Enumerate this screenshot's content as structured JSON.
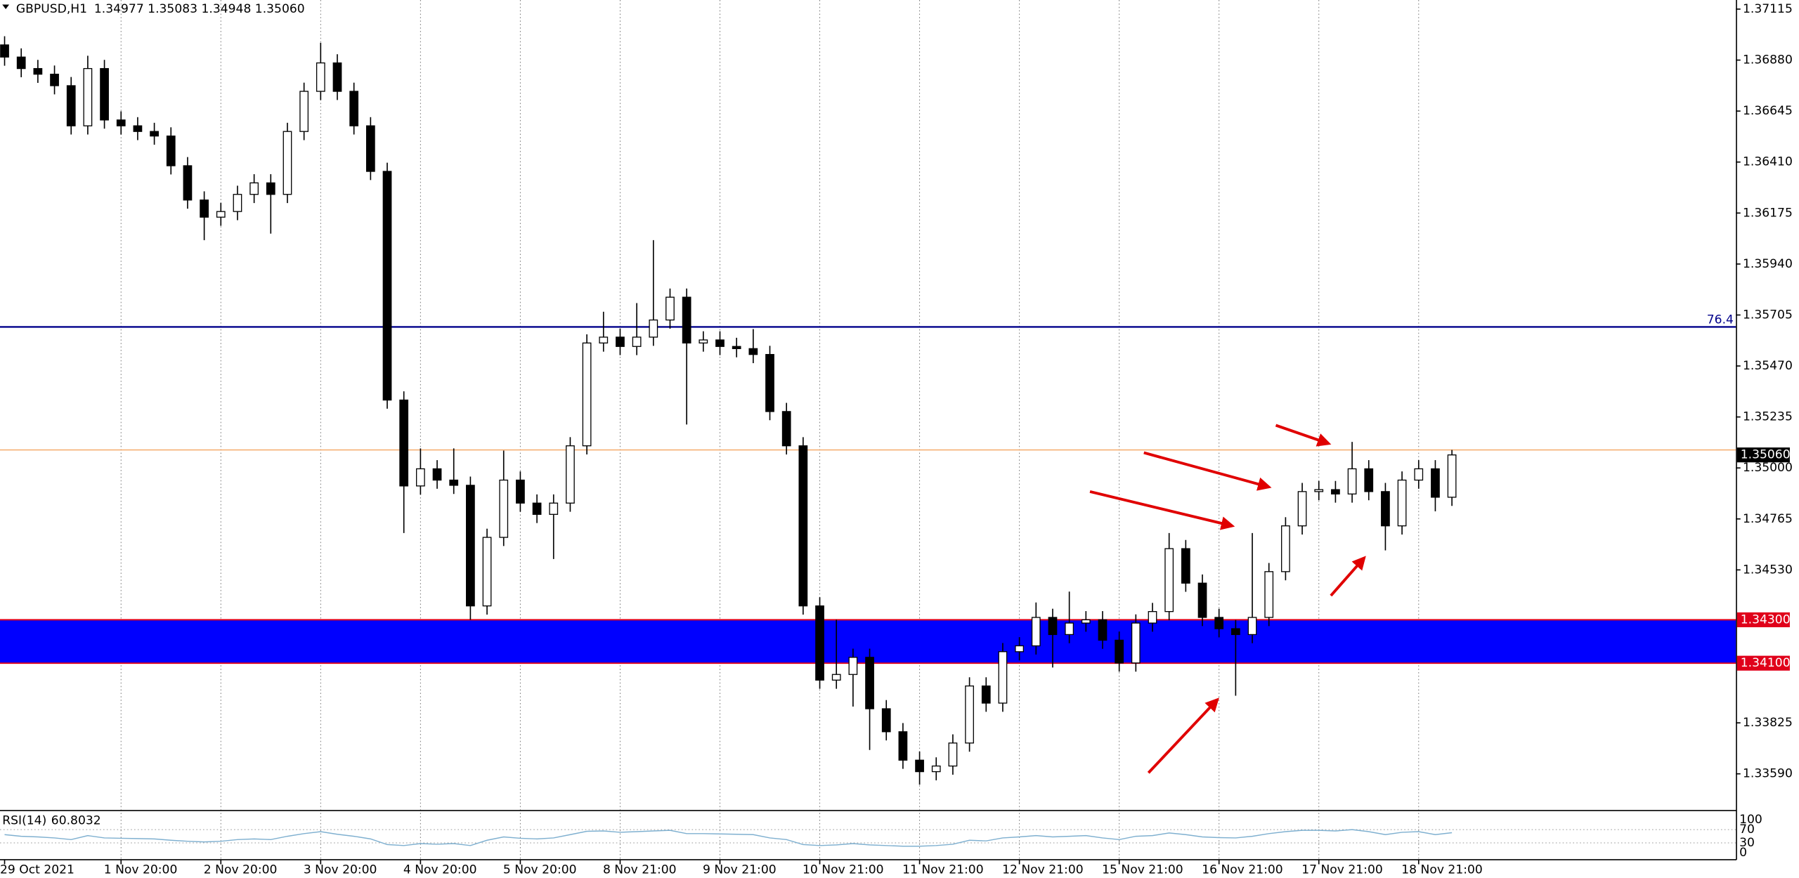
{
  "chart_data": {
    "type": "candlestick",
    "title": "GBPUSD,H1",
    "quote": "1.34977 1.35083 1.34948 1.35060",
    "categories": [
      "29 Oct 2021",
      null,
      null,
      null,
      null,
      null,
      null,
      "1 Nov 20:00",
      null,
      null,
      null,
      null,
      null,
      "2 Nov 20:00",
      null,
      null,
      null,
      null,
      null,
      "3 Nov 20:00",
      null,
      null,
      null,
      null,
      null,
      "4 Nov 20:00",
      null,
      null,
      null,
      null,
      null,
      "5 Nov 20:00",
      null,
      null,
      null,
      null,
      null,
      "8 Nov 21:00",
      null,
      null,
      null,
      null,
      null,
      "9 Nov 21:00",
      null,
      null,
      null,
      null,
      null,
      "10 Nov 21:00",
      null,
      null,
      null,
      null,
      null,
      "11 Nov 21:00",
      null,
      null,
      null,
      null,
      null,
      "12 Nov 21:00",
      null,
      null,
      null,
      null,
      null,
      "15 Nov 21:00",
      null,
      null,
      null,
      null,
      null,
      "16 Nov 21:00",
      null,
      null,
      null,
      null,
      null,
      "17 Nov 21:00",
      null,
      null,
      null,
      null,
      null,
      "18 Nov 21:00",
      null,
      null
    ],
    "open": [
      1.3695,
      1.36894,
      1.36841,
      1.36815,
      1.36762,
      1.36577,
      1.36841,
      1.36604,
      1.36577,
      1.36551,
      1.3653,
      1.36393,
      1.36235,
      1.36156,
      1.36182,
      1.36261,
      1.36314,
      1.36261,
      1.36551,
      1.36736,
      1.36867,
      1.36736,
      1.36577,
      1.36367,
      1.35313,
      1.34917,
      1.34996,
      1.34944,
      1.3492,
      1.34364,
      1.3468,
      1.34944,
      1.34838,
      1.34786,
      1.34838,
      1.35102,
      1.35576,
      1.35603,
      1.3556,
      1.35603,
      1.35682,
      1.35787,
      1.35576,
      1.3559,
      1.3556,
      1.3555,
      1.35523,
      1.3526,
      1.35102,
      1.34364,
      1.34022,
      1.34048,
      1.34127,
      1.3389,
      1.33784,
      1.33653,
      1.336,
      1.33626,
      1.33732,
      1.33995,
      1.33916,
      1.34153,
      1.3418,
      1.34311,
      1.34232,
      1.34285,
      1.343,
      1.34206,
      1.34101,
      1.34285,
      1.34338,
      1.34628,
      1.34469,
      1.34311,
      1.34259,
      1.34232,
      1.34311,
      1.34522,
      1.34733,
      1.34891,
      1.349,
      1.3488,
      1.34996,
      1.34891,
      1.34733,
      1.34944,
      1.34996,
      1.34865
    ],
    "high": [
      1.3699,
      1.36934,
      1.36881,
      1.36855,
      1.36802,
      1.369,
      1.36881,
      1.36644,
      1.36617,
      1.36591,
      1.3657,
      1.36433,
      1.36275,
      1.36222,
      1.36301,
      1.36354,
      1.36354,
      1.36591,
      1.36776,
      1.3696,
      1.36907,
      1.36776,
      1.36617,
      1.36407,
      1.35353,
      1.3509,
      1.35036,
      1.3509,
      1.3496,
      1.3472,
      1.3508,
      1.34984,
      1.34878,
      1.34878,
      1.35142,
      1.35616,
      1.3572,
      1.35643,
      1.3576,
      1.3605,
      1.35827,
      1.35827,
      1.3563,
      1.3563,
      1.356,
      1.3564,
      1.35563,
      1.353,
      1.35142,
      1.34404,
      1.343,
      1.34167,
      1.34167,
      1.3393,
      1.33824,
      1.33693,
      1.33666,
      1.33772,
      1.34035,
      1.34035,
      1.34193,
      1.3422,
      1.3438,
      1.34351,
      1.3443,
      1.3434,
      1.3434,
      1.34246,
      1.34325,
      1.34378,
      1.347,
      1.34668,
      1.34509,
      1.34351,
      1.34299,
      1.347,
      1.34562,
      1.34773,
      1.34931,
      1.3494,
      1.3494,
      1.3512,
      1.35036,
      1.34931,
      1.34984,
      1.35036,
      1.35036,
      1.35083
    ],
    "low": [
      1.36854,
      1.36801,
      1.36775,
      1.36722,
      1.36537,
      1.36537,
      1.36564,
      1.36537,
      1.36511,
      1.3649,
      1.36353,
      1.36195,
      1.3605,
      1.36116,
      1.36142,
      1.36221,
      1.3608,
      1.36221,
      1.36511,
      1.36696,
      1.36696,
      1.36537,
      1.36327,
      1.35273,
      1.347,
      1.34877,
      1.34904,
      1.3488,
      1.343,
      1.34324,
      1.3464,
      1.34798,
      1.34746,
      1.3458,
      1.34798,
      1.35062,
      1.35536,
      1.3552,
      1.3552,
      1.35563,
      1.35642,
      1.352,
      1.35536,
      1.3552,
      1.3551,
      1.35483,
      1.3522,
      1.35062,
      1.34324,
      1.33982,
      1.33982,
      1.339,
      1.337,
      1.33744,
      1.33613,
      1.3354,
      1.3356,
      1.33586,
      1.33692,
      1.33876,
      1.33876,
      1.34113,
      1.3414,
      1.3408,
      1.34192,
      1.34245,
      1.34166,
      1.34061,
      1.34061,
      1.34245,
      1.34298,
      1.34429,
      1.34271,
      1.34219,
      1.3395,
      1.34192,
      1.34271,
      1.34482,
      1.34693,
      1.34851,
      1.3484,
      1.3484,
      1.34851,
      1.3462,
      1.34693,
      1.34904,
      1.348,
      1.34825
    ],
    "close": [
      1.36894,
      1.36841,
      1.36815,
      1.36762,
      1.36577,
      1.36841,
      1.36604,
      1.36577,
      1.36551,
      1.3653,
      1.36393,
      1.36235,
      1.36156,
      1.36182,
      1.36261,
      1.36314,
      1.36261,
      1.36551,
      1.36736,
      1.36867,
      1.36736,
      1.36577,
      1.36367,
      1.35313,
      1.34917,
      1.34996,
      1.34944,
      1.3492,
      1.34364,
      1.3468,
      1.34944,
      1.34838,
      1.34786,
      1.34838,
      1.35102,
      1.35576,
      1.35603,
      1.3556,
      1.35603,
      1.35682,
      1.35787,
      1.35576,
      1.3559,
      1.3556,
      1.3555,
      1.35523,
      1.3526,
      1.35102,
      1.34364,
      1.34022,
      1.34048,
      1.34127,
      1.3389,
      1.33784,
      1.33653,
      1.336,
      1.33626,
      1.33732,
      1.33995,
      1.33916,
      1.34153,
      1.3418,
      1.34311,
      1.34232,
      1.34285,
      1.343,
      1.34206,
      1.34101,
      1.34285,
      1.34338,
      1.34628,
      1.34469,
      1.34311,
      1.34259,
      1.34232,
      1.34311,
      1.34522,
      1.34733,
      1.34891,
      1.349,
      1.3488,
      1.34996,
      1.34891,
      1.34733,
      1.34944,
      1.34996,
      1.34865,
      1.3506
    ],
    "up_color": "#ffffff",
    "down_color": "#000000",
    "ylim": [
      1.33426,
      1.37157
    ],
    "yticks": [
      1.37115,
      {
        "value": 1.3688,
        "label": "1.36880"
      },
      1.36645,
      {
        "value": 1.3641,
        "label": "1.36410"
      },
      1.36175,
      {
        "value": 1.3594,
        "label": "1.35940"
      },
      1.35705,
      {
        "value": 1.3547,
        "label": "1.35470"
      },
      1.35235,
      {
        "value": 1.35,
        "label": "1.35000"
      },
      1.34765,
      {
        "value": 1.3453,
        "label": "1.34530"
      },
      {
        "value": 1.3359,
        "label": "1.33590"
      },
      1.33825
    ],
    "grid": true,
    "level": {
      "value": 1.3565,
      "label": "76.4",
      "color": "#00008b"
    },
    "zone": {
      "values": [
        1.343,
        1.341
      ],
      "labels": [
        "1.34300",
        "1.34100"
      ],
      "color": "#0000ff",
      "edge_color": "#e0001a"
    },
    "ask_line": {
      "value": 1.35083,
      "color": "#f4a460"
    },
    "last": {
      "value": 1.3506,
      "label": "1.35060"
    },
    "indicator": {
      "type": "line",
      "name": "RSI(14)",
      "value": 60.8032,
      "color": "#7fb0d0",
      "values": [
        55,
        50,
        48,
        45,
        40,
        52,
        45,
        44,
        43,
        42,
        38,
        35,
        33,
        35,
        40,
        42,
        40,
        50,
        58,
        64,
        56,
        50,
        42,
        25,
        22,
        28,
        26,
        28,
        22,
        38,
        48,
        44,
        42,
        45,
        55,
        65,
        66,
        62,
        64,
        66,
        68,
        58,
        58,
        57,
        56,
        55,
        45,
        40,
        25,
        22,
        24,
        28,
        24,
        22,
        20,
        20,
        22,
        26,
        38,
        36,
        45,
        48,
        52,
        48,
        50,
        52,
        45,
        40,
        50,
        52,
        60,
        55,
        48,
        46,
        45,
        50,
        58,
        64,
        68,
        68,
        66,
        70,
        64,
        55,
        62,
        64,
        55,
        60.8
      ],
      "ylim": [
        0,
        100
      ],
      "yticks": [
        100,
        70,
        30,
        0
      ]
    }
  }
}
